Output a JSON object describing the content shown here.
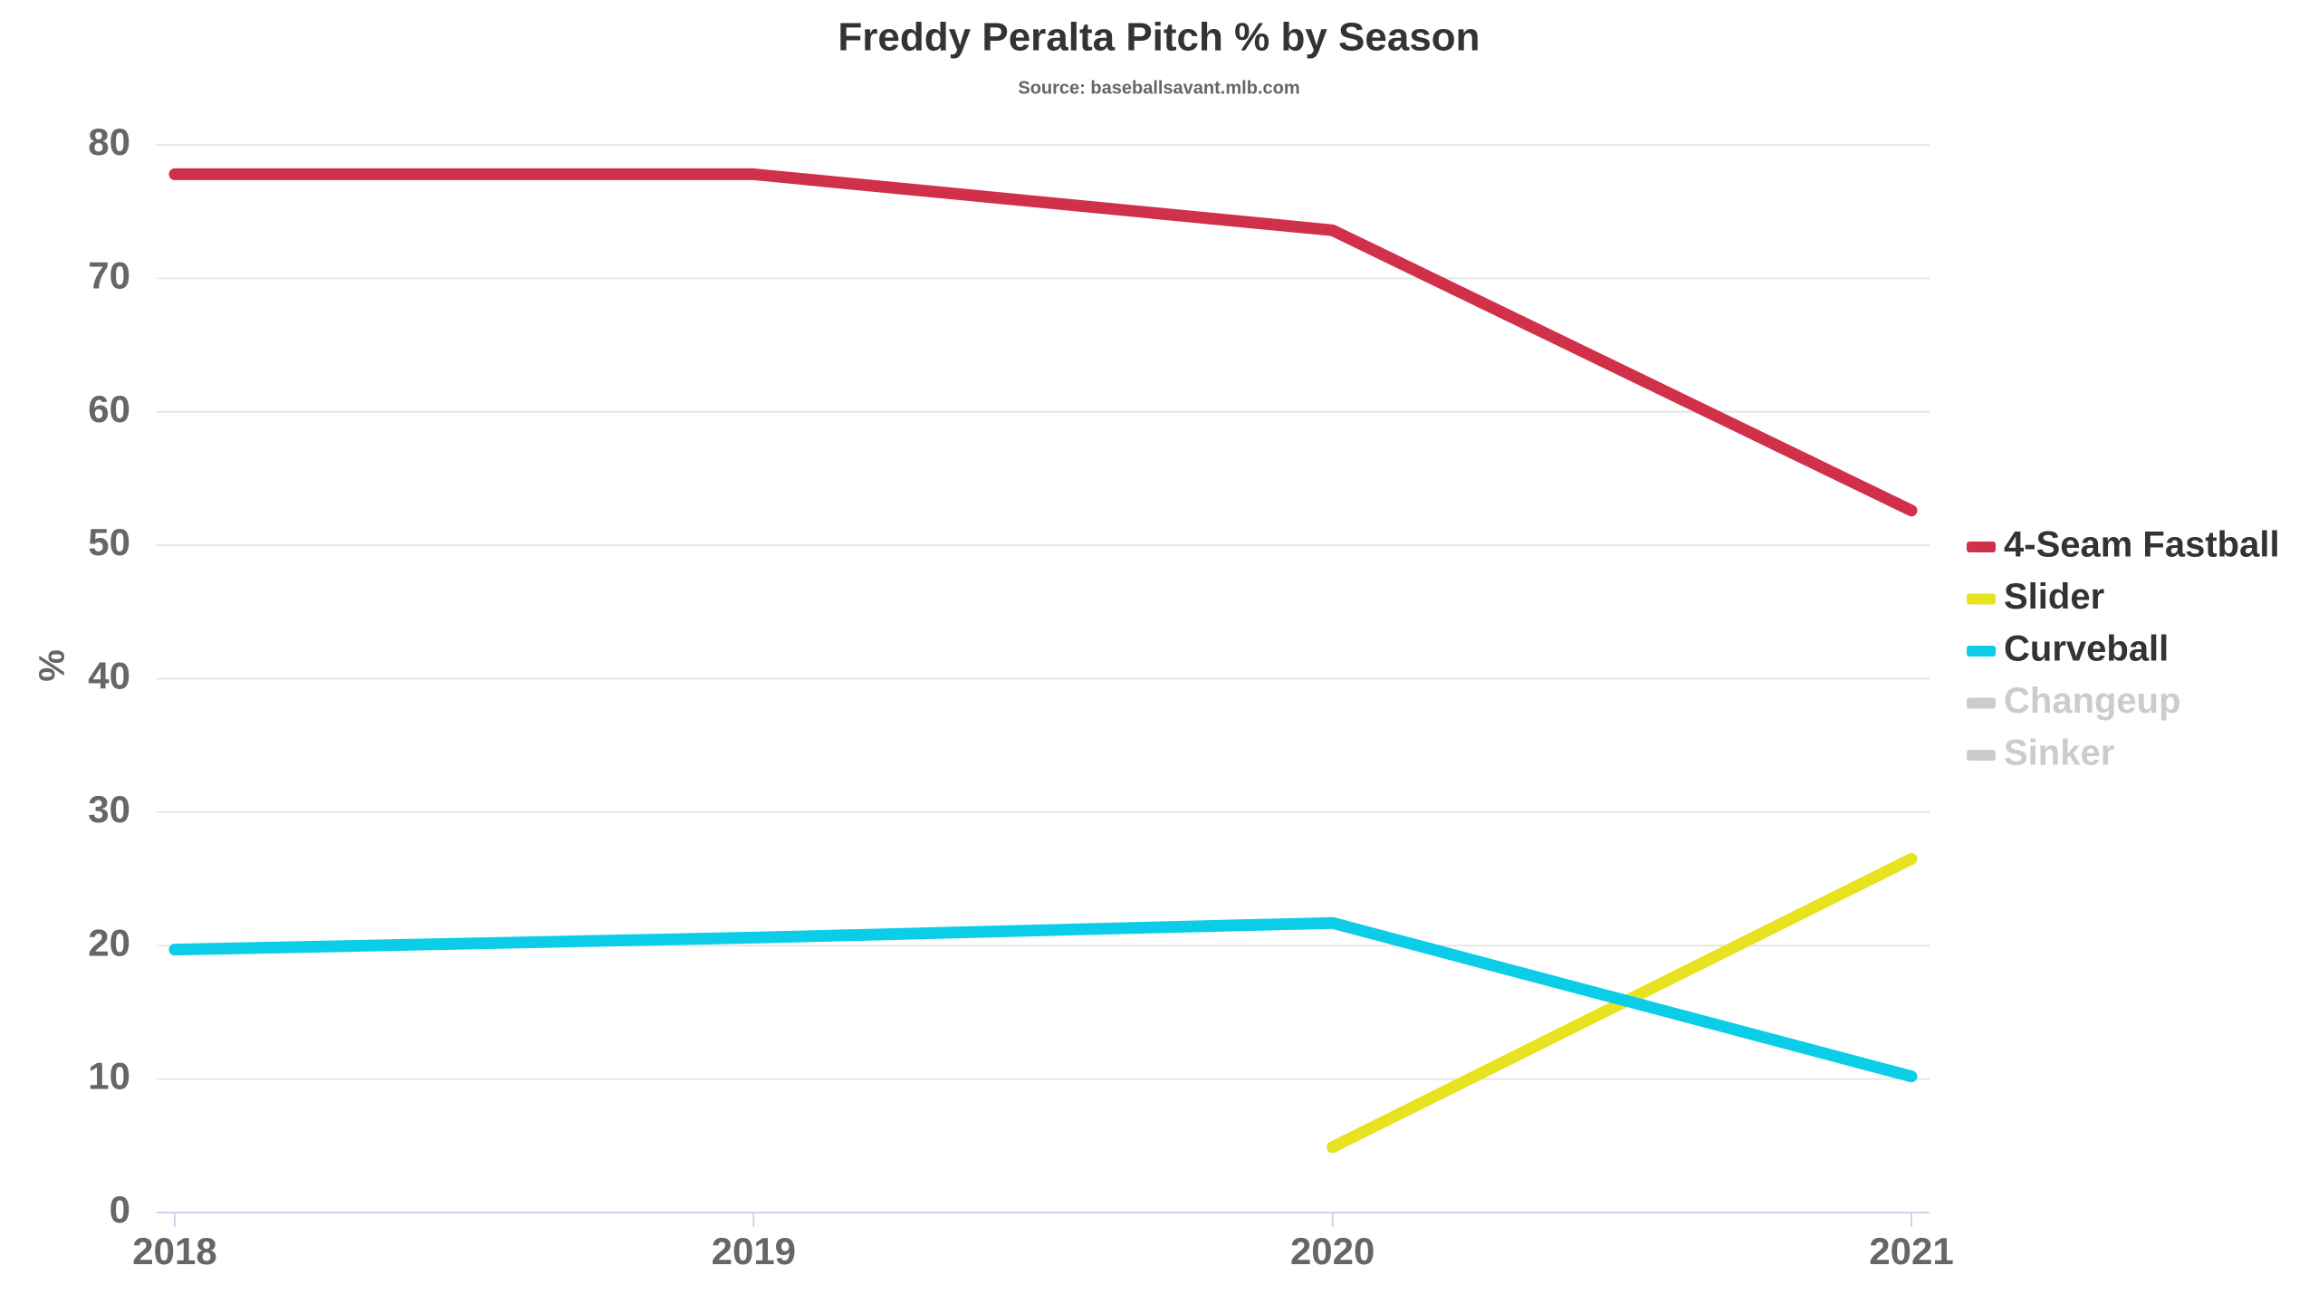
{
  "chart_data": {
    "type": "line",
    "title": "Freddy Peralta Pitch % by Season",
    "subtitle": "Source: baseballsavant.mlb.com",
    "y_label": "%",
    "categories": [
      "2018",
      "2019",
      "2020",
      "2021"
    ],
    "series": [
      {
        "name": "4-Seam Fastball",
        "color": "#d1304a",
        "visible": true,
        "values": [
          77.8,
          77.8,
          73.6,
          52.6
        ]
      },
      {
        "name": "Slider",
        "color": "#e8e321",
        "visible": true,
        "values": [
          null,
          null,
          4.9,
          26.5
        ]
      },
      {
        "name": "Curveball",
        "color": "#0ccde8",
        "visible": true,
        "values": [
          19.7,
          20.6,
          21.7,
          10.2
        ]
      },
      {
        "name": "Changeup",
        "color": "#cccccc",
        "visible": false,
        "values": [
          null,
          null,
          null,
          null
        ]
      },
      {
        "name": "Sinker",
        "color": "#cccccc",
        "visible": false,
        "values": [
          null,
          null,
          null,
          null
        ]
      }
    ],
    "ylim": [
      0,
      80
    ],
    "yticks": [
      0,
      10,
      20,
      30,
      40,
      50,
      60,
      70,
      80
    ],
    "grid": true,
    "legend": "right"
  }
}
